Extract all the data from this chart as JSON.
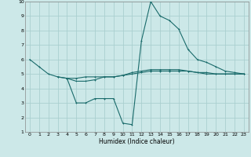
{
  "xlabel": "Humidex (Indice chaleur)",
  "bg_color": "#cce8e8",
  "grid_color": "#aacfcf",
  "line_color": "#1a6b6b",
  "xlim": [
    -0.5,
    23.5
  ],
  "ylim": [
    1,
    10
  ],
  "xticks": [
    0,
    1,
    2,
    3,
    4,
    5,
    6,
    7,
    8,
    9,
    10,
    11,
    12,
    13,
    14,
    15,
    16,
    17,
    18,
    19,
    20,
    21,
    22,
    23
  ],
  "yticks": [
    1,
    2,
    3,
    4,
    5,
    6,
    7,
    8,
    9,
    10
  ],
  "series1": [
    [
      0,
      6.0
    ],
    [
      1,
      5.5
    ],
    [
      2,
      5.0
    ],
    [
      3,
      4.8
    ],
    [
      4,
      4.7
    ],
    [
      5,
      4.7
    ],
    [
      6,
      4.8
    ],
    [
      7,
      4.8
    ],
    [
      8,
      4.8
    ],
    [
      9,
      4.8
    ],
    [
      10,
      4.9
    ],
    [
      11,
      5.1
    ],
    [
      12,
      5.2
    ],
    [
      13,
      5.3
    ],
    [
      14,
      5.3
    ],
    [
      15,
      5.3
    ],
    [
      16,
      5.3
    ],
    [
      17,
      5.2
    ],
    [
      18,
      5.1
    ],
    [
      19,
      5.1
    ],
    [
      20,
      5.0
    ],
    [
      21,
      5.0
    ],
    [
      22,
      5.0
    ],
    [
      23,
      5.0
    ]
  ],
  "series2": [
    [
      4,
      4.7
    ],
    [
      5,
      3.0
    ],
    [
      6,
      3.0
    ],
    [
      7,
      3.3
    ],
    [
      8,
      3.3
    ],
    [
      9,
      3.3
    ],
    [
      10,
      1.6
    ],
    [
      11,
      1.5
    ],
    [
      12,
      7.3
    ],
    [
      13,
      10.0
    ],
    [
      14,
      9.0
    ],
    [
      15,
      8.7
    ],
    [
      16,
      8.1
    ],
    [
      17,
      6.7
    ],
    [
      18,
      6.0
    ],
    [
      19,
      5.8
    ],
    [
      20,
      5.5
    ],
    [
      21,
      5.2
    ],
    [
      22,
      5.1
    ],
    [
      23,
      5.0
    ]
  ],
  "series3": [
    [
      3,
      4.8
    ],
    [
      4,
      4.7
    ],
    [
      5,
      4.5
    ],
    [
      6,
      4.5
    ],
    [
      7,
      4.6
    ],
    [
      8,
      4.8
    ],
    [
      9,
      4.8
    ],
    [
      10,
      4.9
    ],
    [
      11,
      5.0
    ],
    [
      12,
      5.1
    ],
    [
      13,
      5.2
    ],
    [
      14,
      5.2
    ],
    [
      15,
      5.2
    ],
    [
      16,
      5.2
    ],
    [
      17,
      5.2
    ],
    [
      18,
      5.1
    ],
    [
      19,
      5.0
    ],
    [
      20,
      5.0
    ],
    [
      21,
      5.0
    ],
    [
      22,
      5.0
    ],
    [
      23,
      5.0
    ]
  ]
}
